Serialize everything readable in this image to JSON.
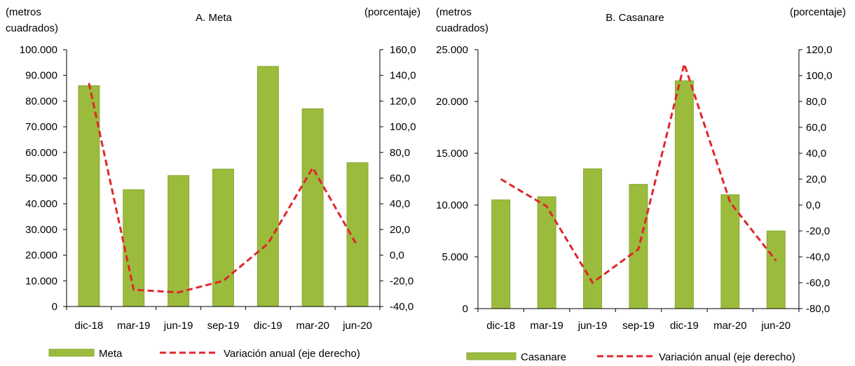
{
  "chart_data": [
    {
      "type": "bar",
      "title": "A. Meta",
      "ylabel_left": "(metros cuadrados)",
      "ylabel_right": "(porcentaje)",
      "categories": [
        "dic-18",
        "mar-19",
        "jun-19",
        "sep-19",
        "dic-19",
        "mar-20",
        "jun-20"
      ],
      "ylim_left": [
        0,
        100000
      ],
      "yticks_left": [
        "0",
        "10.000",
        "20.000",
        "30.000",
        "40.000",
        "50.000",
        "60.000",
        "70.000",
        "80.000",
        "90.000",
        "100.000"
      ],
      "ylim_right": [
        -40,
        160
      ],
      "yticks_right": [
        "-40,0",
        "-20,0",
        "0,0",
        "20,0",
        "40,0",
        "60,0",
        "80,0",
        "100,0",
        "120,0",
        "140,0",
        "160,0"
      ],
      "grid": false,
      "legend_position": "bottom",
      "series": [
        {
          "name": "Meta",
          "type": "bar",
          "axis": "left",
          "color": "#9bbb3c",
          "values": [
            86000,
            45500,
            51000,
            53500,
            93500,
            77000,
            56000
          ]
        },
        {
          "name": "Variación anual (eje derecho)",
          "type": "line",
          "style": "dashed",
          "axis": "right",
          "color": "#e0262b",
          "values": [
            134,
            -27,
            -29,
            -20,
            9,
            68,
            7
          ]
        }
      ]
    },
    {
      "type": "bar",
      "title": "B. Casanare",
      "ylabel_left": "(metros cuadrados)",
      "ylabel_right": "(porcentaje)",
      "categories": [
        "dic-18",
        "mar-19",
        "jun-19",
        "sep-19",
        "dic-19",
        "mar-20",
        "jun-20"
      ],
      "ylim_left": [
        0,
        25000
      ],
      "yticks_left": [
        "0",
        "5.000",
        "10.000",
        "15.000",
        "20.000",
        "25.000"
      ],
      "ylim_right": [
        -80,
        120
      ],
      "yticks_right": [
        "-80,0",
        "-60,0",
        "-40,0",
        "-20,0",
        "0,0",
        "20,0",
        "40,0",
        "60,0",
        "80,0",
        "100,0",
        "120,0"
      ],
      "grid": false,
      "legend_position": "bottom",
      "series": [
        {
          "name": "Casanare",
          "type": "bar",
          "axis": "left",
          "color": "#9bbb3c",
          "values": [
            10500,
            10800,
            13500,
            12000,
            22000,
            11000,
            7500
          ]
        },
        {
          "name": "Variación anual (eje derecho)",
          "type": "line",
          "style": "dashed",
          "axis": "right",
          "color": "#e0262b",
          "values": [
            20,
            -1,
            -60,
            -34,
            109,
            2,
            -43
          ]
        }
      ]
    }
  ]
}
